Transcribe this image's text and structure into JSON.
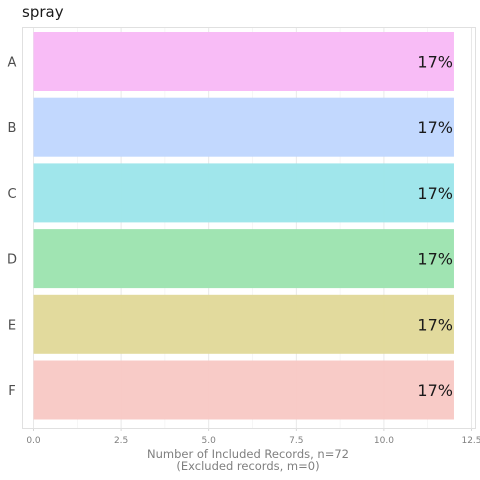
{
  "chart_data": {
    "type": "bar",
    "orientation": "horizontal",
    "title": "spray",
    "categories": [
      "A",
      "B",
      "C",
      "D",
      "E",
      "F"
    ],
    "values": [
      12,
      12,
      12,
      12,
      12,
      12
    ],
    "data_labels": [
      "17%",
      "17%",
      "17%",
      "17%",
      "17%",
      "17%"
    ],
    "colors": [
      "#F8B8F6",
      "#BFD6FE",
      "#9BE5EA",
      "#9BE3AE",
      "#E0D898",
      "#F8C8C4"
    ],
    "xlim": [
      -0.3,
      12.6
    ],
    "x_ticks": [
      0,
      2.5,
      5,
      7.5,
      10,
      12.5
    ],
    "x_tick_labels": [
      "0.0",
      "2.5",
      "5.0",
      "7.5",
      "10.0",
      "12.5"
    ],
    "xlabel": "Number of Included Records, n=72",
    "xlabel_sub": "(Excluded records, m=0)",
    "ylabel": "",
    "grid": true,
    "legend": "none"
  }
}
